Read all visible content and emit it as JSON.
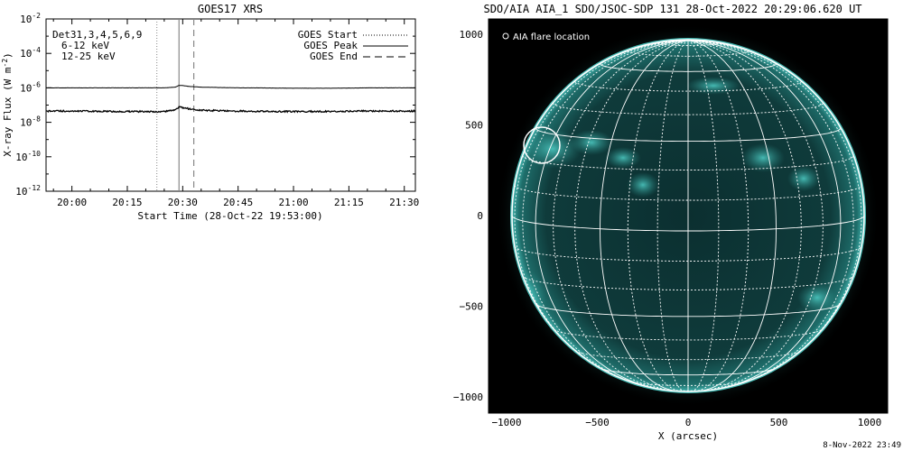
{
  "left_panel": {
    "title": "GOES17 XRS",
    "detectors_label": "Det31,3,4,5,6,9",
    "band_labels": [
      {
        "text": "6-12 keV",
        "color": "#ff00ff"
      },
      {
        "text": "12-25 keV",
        "color": "#00c800"
      }
    ],
    "legend": [
      {
        "label": "GOES Start",
        "style": "dotted"
      },
      {
        "label": "GOES Peak",
        "style": "solid"
      },
      {
        "label": "GOES End",
        "style": "dashed"
      }
    ],
    "ylabel_parts": [
      "X-ray Flux (W m",
      "-2",
      ")"
    ],
    "xlabel": "Start Time (28-Oct-22 19:53:00)",
    "y_ticks": [
      {
        "base": "10",
        "exp": "-2",
        "value": -2
      },
      {
        "base": "10",
        "exp": "-4",
        "value": -4
      },
      {
        "base": "10",
        "exp": "-6",
        "value": -6
      },
      {
        "base": "10",
        "exp": "-8",
        "value": -8
      },
      {
        "base": "10",
        "exp": "-10",
        "value": -10
      },
      {
        "base": "10",
        "exp": "-12",
        "value": -12
      }
    ],
    "x_ticks": [
      {
        "label": "20:00",
        "minutes": 7
      },
      {
        "label": "20:15",
        "minutes": 22
      },
      {
        "label": "20:30",
        "minutes": 37
      },
      {
        "label": "20:45",
        "minutes": 52
      },
      {
        "label": "21:00",
        "minutes": 67
      },
      {
        "label": "21:15",
        "minutes": 82
      },
      {
        "label": "21:30",
        "minutes": 97
      }
    ]
  },
  "chart_data": [
    {
      "type": "line",
      "title": "GOES17 XRS",
      "xlabel": "Start Time (28-Oct-22 19:53:00)",
      "ylabel": "X-ray Flux (W m-2)",
      "y_scale": "log",
      "ylim": [
        1e-12,
        0.01
      ],
      "xlim": [
        "19:53",
        "21:33"
      ],
      "series": [
        {
          "x": [
            "19:53",
            "20:00",
            "20:10",
            "20:20",
            "20:25",
            "20:28",
            "20:29",
            "20:30",
            "20:32",
            "20:35",
            "20:40",
            "20:45",
            "20:50",
            "21:00",
            "21:10",
            "21:20",
            "21:33"
          ],
          "y": [
            1e-06,
            1e-06,
            1e-06,
            1e-06,
            1e-06,
            1.1e-06,
            1.4e-06,
            1.35e-06,
            1.2e-06,
            1.1e-06,
            1.05e-06,
            1e-06,
            1e-06,
            9.5e-07,
            9.5e-07,
            1e-06,
            1e-06
          ],
          "color": "#000000"
        },
        {
          "x": [
            "19:53",
            "20:00",
            "20:10",
            "20:20",
            "20:25",
            "20:28",
            "20:29",
            "20:30",
            "20:32",
            "20:35",
            "20:40",
            "20:45",
            "20:50",
            "21:00",
            "21:10",
            "21:20",
            "21:33"
          ],
          "y": [
            4.5e-08,
            4.5e-08,
            4.3e-08,
            4.2e-08,
            4.2e-08,
            5e-08,
            8e-08,
            7e-08,
            6e-08,
            5e-08,
            4.8e-08,
            4.5e-08,
            4.3e-08,
            4.2e-08,
            4.3e-08,
            4.5e-08,
            4.5e-08
          ],
          "color": "#000000"
        }
      ],
      "vlines": [
        {
          "label": "GOES Start",
          "x": "20:23",
          "style": "dotted"
        },
        {
          "label": "GOES Peak",
          "x": "20:29",
          "style": "solid"
        },
        {
          "label": "GOES End",
          "x": "20:33",
          "style": "dashed"
        }
      ]
    },
    {
      "type": "image",
      "title": "SDO/AIA AIA_1 SDO/JSOC-SDP 131 28-Oct-2022 20:29:06.620 UT",
      "xlabel": "X (arcsec)",
      "xlim": [
        -1150,
        1150
      ],
      "ylim": [
        -1100,
        1100
      ],
      "x_ticks": [
        -1000,
        -500,
        0,
        500,
        1000
      ],
      "y_ticks": [
        1000,
        500,
        0,
        -500,
        -1000
      ],
      "grid": true,
      "annotation": {
        "label": "AIA flare location",
        "x": -800,
        "y": 400
      }
    }
  ],
  "right_panel": {
    "title": "SDO/AIA AIA_1 SDO/JSOC-SDP 131 28-Oct-2022 20:29:06.620 UT",
    "legend_label": "AIA flare location",
    "xlabel": "X (arcsec)",
    "x_tick_labels": [
      "−1000",
      "−500",
      "0",
      "500",
      "1000"
    ],
    "y_tick_labels": [
      "1000",
      "500",
      "0",
      "−500",
      "−1000"
    ],
    "colors": {
      "disk": "#0e3838",
      "limb": "#3fc6c0",
      "grid": "#ffffff",
      "background": "#000000"
    }
  },
  "footer": {
    "timestamp": "8-Nov-2022 23:49"
  }
}
